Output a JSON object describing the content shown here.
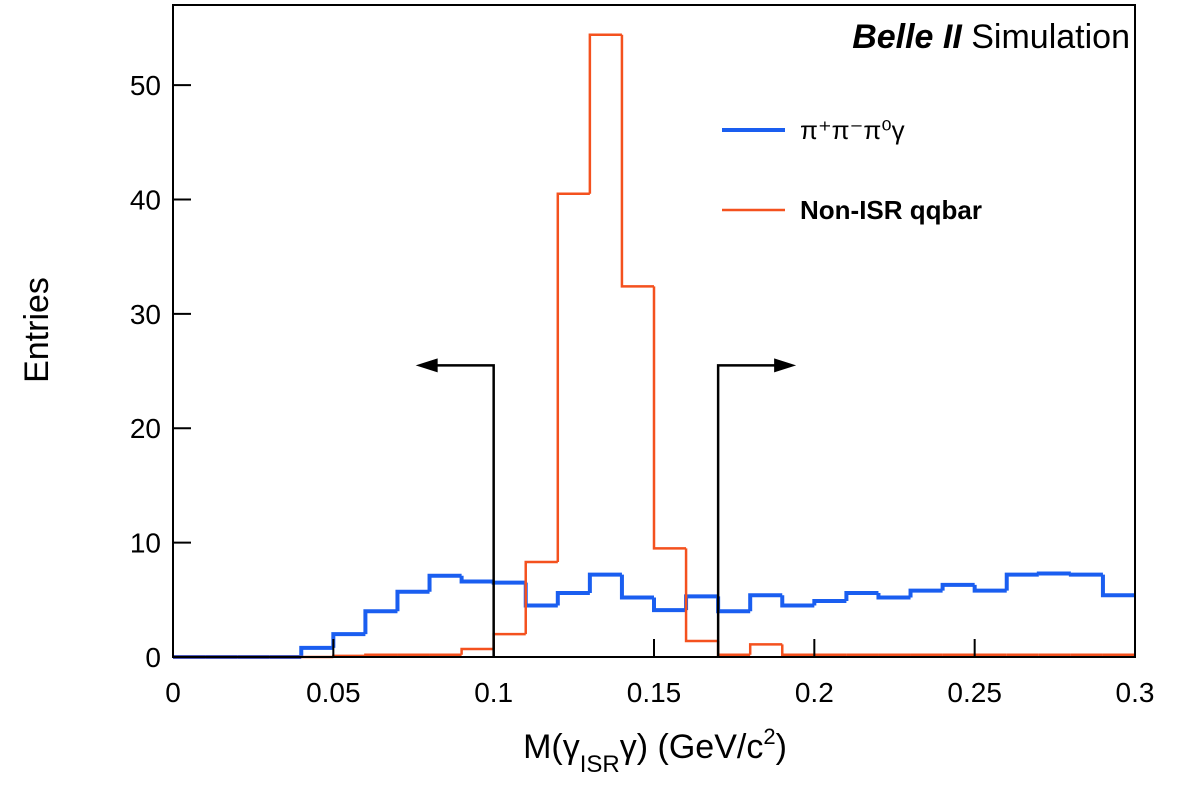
{
  "chart_data": {
    "type": "histogram",
    "experiment": "Belle II",
    "title": "Simulation",
    "ylabel": "Entries",
    "xlabel": [
      "M(γ",
      "ISR",
      "γ) (GeV/c",
      "2",
      ")"
    ],
    "bins": [
      0,
      0.01,
      0.02,
      0.03,
      0.04,
      0.05,
      0.06,
      0.07,
      0.08,
      0.09,
      0.1,
      0.11,
      0.12,
      0.13,
      0.14,
      0.15,
      0.16,
      0.17,
      0.18,
      0.19,
      0.2,
      0.21,
      0.22,
      0.23,
      0.24,
      0.25,
      0.26,
      0.27,
      0.28,
      0.29,
      0.3
    ],
    "series": [
      {
        "name": "π⁺π⁻π⁰γ",
        "color": "#1a5ef0",
        "width": 4,
        "values": [
          0,
          0,
          0,
          0,
          0.8,
          2.0,
          4.0,
          5.7,
          7.1,
          6.6,
          6.5,
          4.5,
          5.6,
          7.2,
          5.2,
          4.1,
          5.3,
          4.0,
          5.4,
          4.5,
          4.9,
          5.6,
          5.2,
          5.8,
          6.3,
          5.8,
          7.2,
          7.3,
          7.2,
          5.4
        ]
      },
      {
        "name": "Non-ISR qqbar",
        "color": "#f4511e",
        "width": 2.5,
        "values": [
          0,
          0,
          0,
          0,
          0,
          0.1,
          0.2,
          0.2,
          0.2,
          0.7,
          2.0,
          8.3,
          40.5,
          54.4,
          32.4,
          9.5,
          1.4,
          0.2,
          1.1,
          0.2,
          0.2,
          0.2,
          0.2,
          0.2,
          0.2,
          0.2,
          0.2,
          0.2,
          0.2,
          0.2
        ]
      }
    ],
    "cuts": [
      {
        "x": 0.1,
        "direction": "left"
      },
      {
        "x": 0.17,
        "direction": "right"
      }
    ],
    "cut_height": 25.5,
    "xlim": [
      0,
      0.3
    ],
    "ylim": [
      0,
      57
    ],
    "xticks": [
      0,
      0.05,
      0.1,
      0.15,
      0.2,
      0.25,
      0.3
    ],
    "yticks": [
      0,
      10,
      20,
      30,
      40,
      50
    ]
  }
}
